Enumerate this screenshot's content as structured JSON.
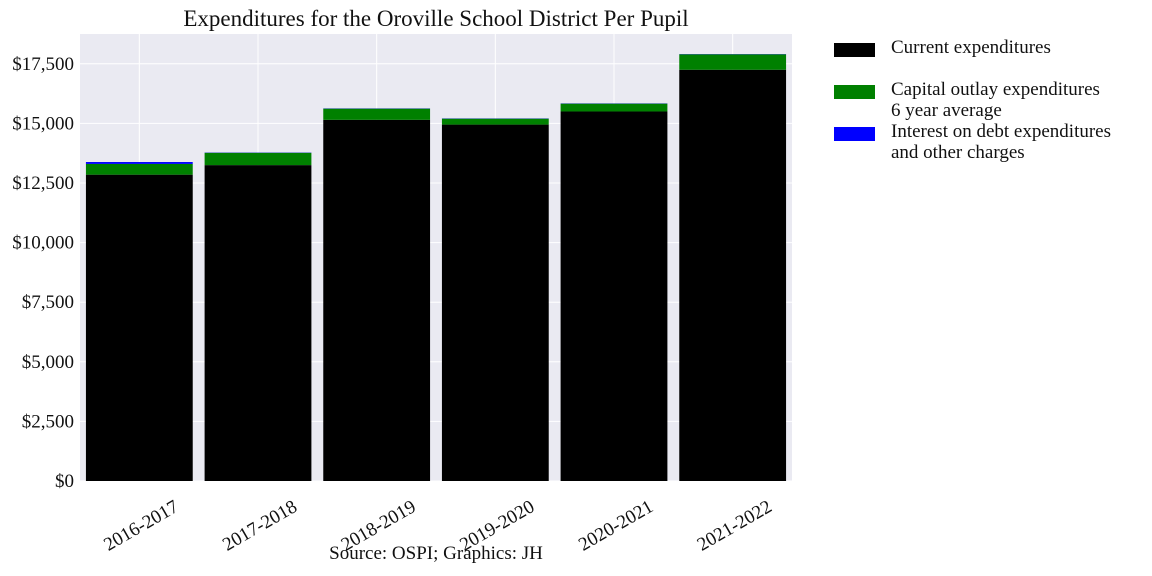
{
  "chart_data": {
    "type": "bar",
    "stacked": true,
    "title": "Expenditures for the Oroville School District Per Pupil",
    "source": "Source: OSPI; Graphics: JH",
    "xlabel": "",
    "ylabel": "",
    "categories": [
      "2016-2017",
      "2017-2018",
      "2018-2019",
      "2019-2020",
      "2020-2021",
      "2021-2022"
    ],
    "series": [
      {
        "name": "Current expenditures",
        "color": "#000000",
        "values": [
          12850,
          13250,
          15150,
          14950,
          15500,
          17250
        ]
      },
      {
        "name": "Capital outlay expenditures\n6 year average",
        "color": "#008000",
        "values": [
          450,
          520,
          470,
          250,
          330,
          650
        ]
      },
      {
        "name": "Interest on debt expenditures\nand other charges",
        "color": "#0000ff",
        "values": [
          80,
          10,
          10,
          10,
          10,
          10
        ]
      }
    ],
    "ylim": [
      0,
      18750
    ],
    "yticks": [
      0,
      2500,
      5000,
      7500,
      10000,
      12500,
      15000,
      17500
    ],
    "ytick_labels": [
      "$0",
      "$2,500",
      "$5,000",
      "$7,500",
      "$10,000",
      "$12,500",
      "$15,000",
      "$17,500"
    ],
    "grid": true,
    "legend_position": "outside-right",
    "background": "#eaeaf2"
  }
}
